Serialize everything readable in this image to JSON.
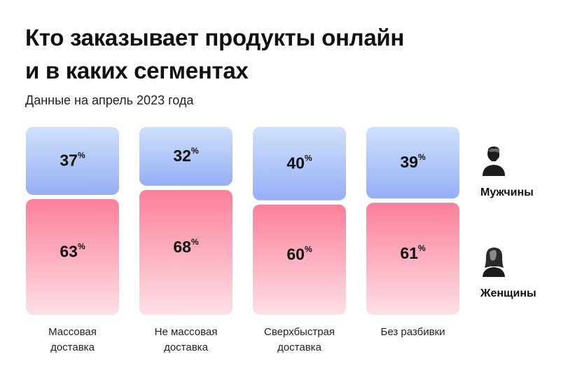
{
  "header": {
    "title_line1": "Кто заказывает продукты онлайн",
    "title_line2": "и в каких сегментах",
    "subtitle": "Данные на апрель 2023 года"
  },
  "legend": {
    "men_label": "Мужчины",
    "men_icon": "man-icon",
    "women_label": "Женщины",
    "women_icon": "woman-icon"
  },
  "colors": {
    "men_top": "#cfe1fb",
    "men_bottom": "#96aff5",
    "women_top": "#fb7f9a",
    "women_bottom": "#fde0e6"
  },
  "chart_data": {
    "type": "bar",
    "stacked": true,
    "percent_unit": "%",
    "categories": [
      [
        "Массовая",
        "доставка"
      ],
      [
        "Не массовая",
        "доставка"
      ],
      [
        "Сверхбыстрая",
        "доставка"
      ],
      [
        "Без разбивки"
      ]
    ],
    "series": [
      {
        "name": "Мужчины",
        "values": [
          37,
          32,
          40,
          39
        ]
      },
      {
        "name": "Женщины",
        "values": [
          63,
          68,
          60,
          61
        ]
      }
    ],
    "ylim": [
      0,
      100
    ]
  }
}
